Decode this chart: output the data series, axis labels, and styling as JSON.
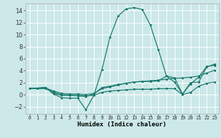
{
  "xlabel": "Humidex (Indice chaleur)",
  "background_color": "#cce8e8",
  "grid_color": "#ffffff",
  "line_color": "#1a7a6e",
  "xlim": [
    -0.5,
    23.5
  ],
  "ylim": [
    -3.2,
    15.2
  ],
  "xticks": [
    0,
    1,
    2,
    3,
    4,
    5,
    6,
    7,
    8,
    9,
    10,
    11,
    12,
    13,
    14,
    15,
    16,
    17,
    18,
    19,
    20,
    21,
    22,
    23
  ],
  "yticks": [
    -2,
    0,
    2,
    4,
    6,
    8,
    10,
    12,
    14
  ],
  "series": [
    {
      "x": [
        0,
        1,
        2,
        3,
        4,
        5,
        6,
        7,
        8,
        9,
        10,
        11,
        12,
        13,
        14,
        15,
        16,
        17,
        18,
        19,
        20,
        21,
        22,
        23
      ],
      "y": [
        1,
        1.1,
        1.2,
        0.1,
        -0.5,
        -0.6,
        -0.6,
        -2.5,
        -0.1,
        4.2,
        9.6,
        13.1,
        14.3,
        14.5,
        14.2,
        11.6,
        7.5,
        3.1,
        2.1,
        0.1,
        2.0,
        2.1,
        4.6,
        5.1
      ]
    },
    {
      "x": [
        0,
        1,
        2,
        3,
        4,
        5,
        6,
        7,
        8,
        9,
        10,
        11,
        12,
        13,
        14,
        15,
        16,
        17,
        18,
        19,
        20,
        21,
        22,
        23
      ],
      "y": [
        1,
        1.1,
        1.1,
        0.6,
        0.2,
        0.1,
        0.1,
        0.0,
        0.2,
        1.0,
        1.3,
        1.6,
        1.9,
        2.1,
        2.2,
        2.3,
        2.4,
        2.6,
        2.7,
        2.8,
        2.9,
        3.1,
        3.6,
        4.1
      ]
    },
    {
      "x": [
        0,
        1,
        2,
        3,
        4,
        5,
        6,
        7,
        8,
        9,
        10,
        11,
        12,
        13,
        14,
        15,
        16,
        17,
        18,
        19,
        20,
        21,
        22,
        23
      ],
      "y": [
        1,
        1.1,
        1.2,
        0.2,
        -0.1,
        -0.1,
        -0.2,
        -0.3,
        0.1,
        1.2,
        1.4,
        1.7,
        1.9,
        2.1,
        2.2,
        2.2,
        2.3,
        3.1,
        2.8,
        0.1,
        1.8,
        2.9,
        4.7,
        4.9
      ]
    },
    {
      "x": [
        0,
        1,
        2,
        3,
        4,
        5,
        6,
        7,
        8,
        9,
        10,
        11,
        12,
        13,
        14,
        15,
        16,
        17,
        18,
        19,
        20,
        21,
        22,
        23
      ],
      "y": [
        1,
        1.0,
        1.0,
        0.4,
        0.0,
        -0.1,
        -0.1,
        -0.2,
        -0.1,
        0.4,
        0.6,
        0.7,
        0.8,
        0.9,
        0.9,
        0.9,
        1.0,
        1.0,
        1.0,
        0.0,
        0.4,
        1.4,
        1.9,
        2.1
      ]
    }
  ]
}
